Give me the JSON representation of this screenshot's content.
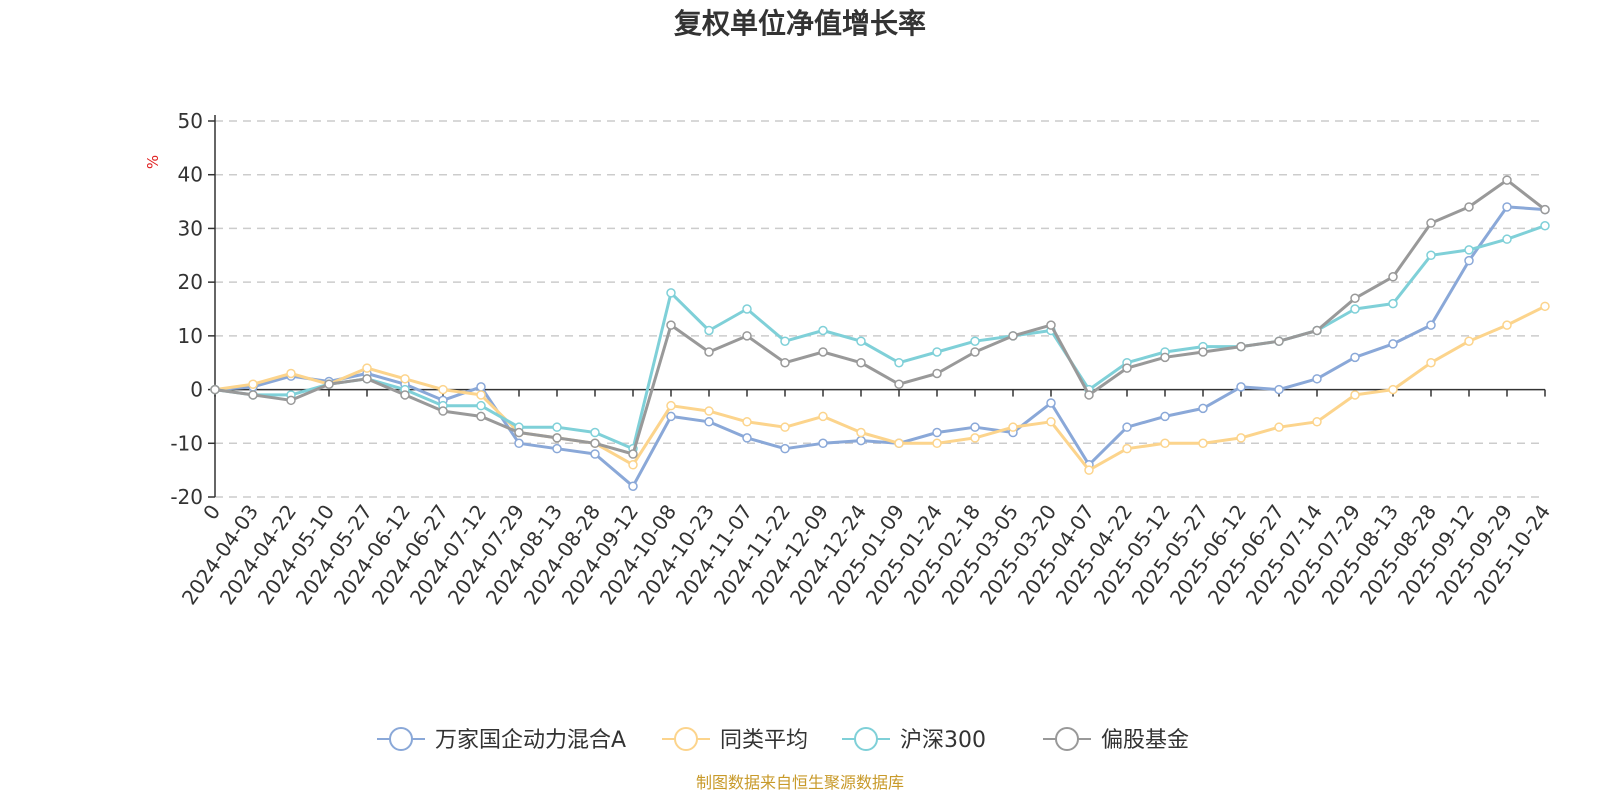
{
  "chart_data": {
    "type": "line",
    "title": "复权单位净值增长率",
    "unit": "%",
    "source": "制图数据来自恒生聚源数据库",
    "ylim": [
      -20,
      50
    ],
    "yticks": [
      50,
      40,
      30,
      20,
      10,
      0,
      -10,
      -20
    ],
    "x_labels": [
      "0",
      "2024-04-03",
      "2024-04-22",
      "2024-05-10",
      "2024-05-27",
      "2024-06-12",
      "2024-06-27",
      "2024-07-12",
      "2024-07-29",
      "2024-08-13",
      "2024-08-28",
      "2024-09-12",
      "2024-10-08",
      "2024-10-23",
      "2024-11-07",
      "2024-11-22",
      "2024-12-09",
      "2024-12-24",
      "2025-01-09",
      "2025-01-24",
      "2025-02-18",
      "2025-03-05",
      "2025-03-20",
      "2025-04-07",
      "2025-04-22",
      "2025-05-12",
      "2025-05-27",
      "2025-06-12",
      "2025-06-27",
      "2025-07-14",
      "2025-07-29",
      "2025-08-13",
      "2025-08-28",
      "2025-09-12",
      "2025-09-29",
      "2025-10-24"
    ],
    "grid": true,
    "legend_position": "bottom",
    "series": [
      {
        "name": "万家国企动力混合A",
        "color": "#8aa8d8",
        "values": [
          0,
          0.5,
          2.5,
          1.5,
          3,
          1,
          -2,
          0.5,
          -10,
          -11,
          -12,
          -18,
          -5,
          -6,
          -9,
          -11,
          -10,
          -9.5,
          -10,
          -8,
          -7,
          -8,
          -2.5,
          -14,
          -7,
          -5,
          -3.5,
          0.5,
          0,
          2,
          6,
          8.5,
          12,
          24,
          34,
          33.5
        ]
      },
      {
        "name": "同类平均",
        "color": "#fcd48c",
        "values": [
          0,
          1,
          3,
          1,
          4,
          2,
          0,
          -1,
          -8,
          -9,
          -10,
          -14,
          -3,
          -4,
          -6,
          -7,
          -5,
          -8,
          -10,
          -10,
          -9,
          -7,
          -6,
          -15,
          -11,
          -10,
          -10,
          -9,
          -7,
          -6,
          -1,
          0,
          5,
          9,
          12,
          15.5
        ]
      },
      {
        "name": "沪深300",
        "color": "#7fd0d8",
        "values": [
          0,
          -1,
          -1,
          1,
          2,
          0,
          -3,
          -3,
          -7,
          -7,
          -8,
          -11,
          18,
          11,
          15,
          9,
          11,
          9,
          5,
          7,
          9,
          10,
          11,
          0,
          5,
          7,
          8,
          8,
          9,
          11,
          15,
          16,
          25,
          26,
          28,
          30.5
        ]
      },
      {
        "name": "偏股基金",
        "color": "#999999",
        "values": [
          0,
          -1,
          -2,
          1,
          2,
          -1,
          -4,
          -5,
          -8,
          -9,
          -10,
          -12,
          12,
          7,
          10,
          5,
          7,
          5,
          1,
          3,
          7,
          10,
          12,
          -1,
          4,
          6,
          7,
          8,
          9,
          11,
          17,
          21,
          31,
          34,
          39,
          33.5
        ]
      }
    ]
  }
}
